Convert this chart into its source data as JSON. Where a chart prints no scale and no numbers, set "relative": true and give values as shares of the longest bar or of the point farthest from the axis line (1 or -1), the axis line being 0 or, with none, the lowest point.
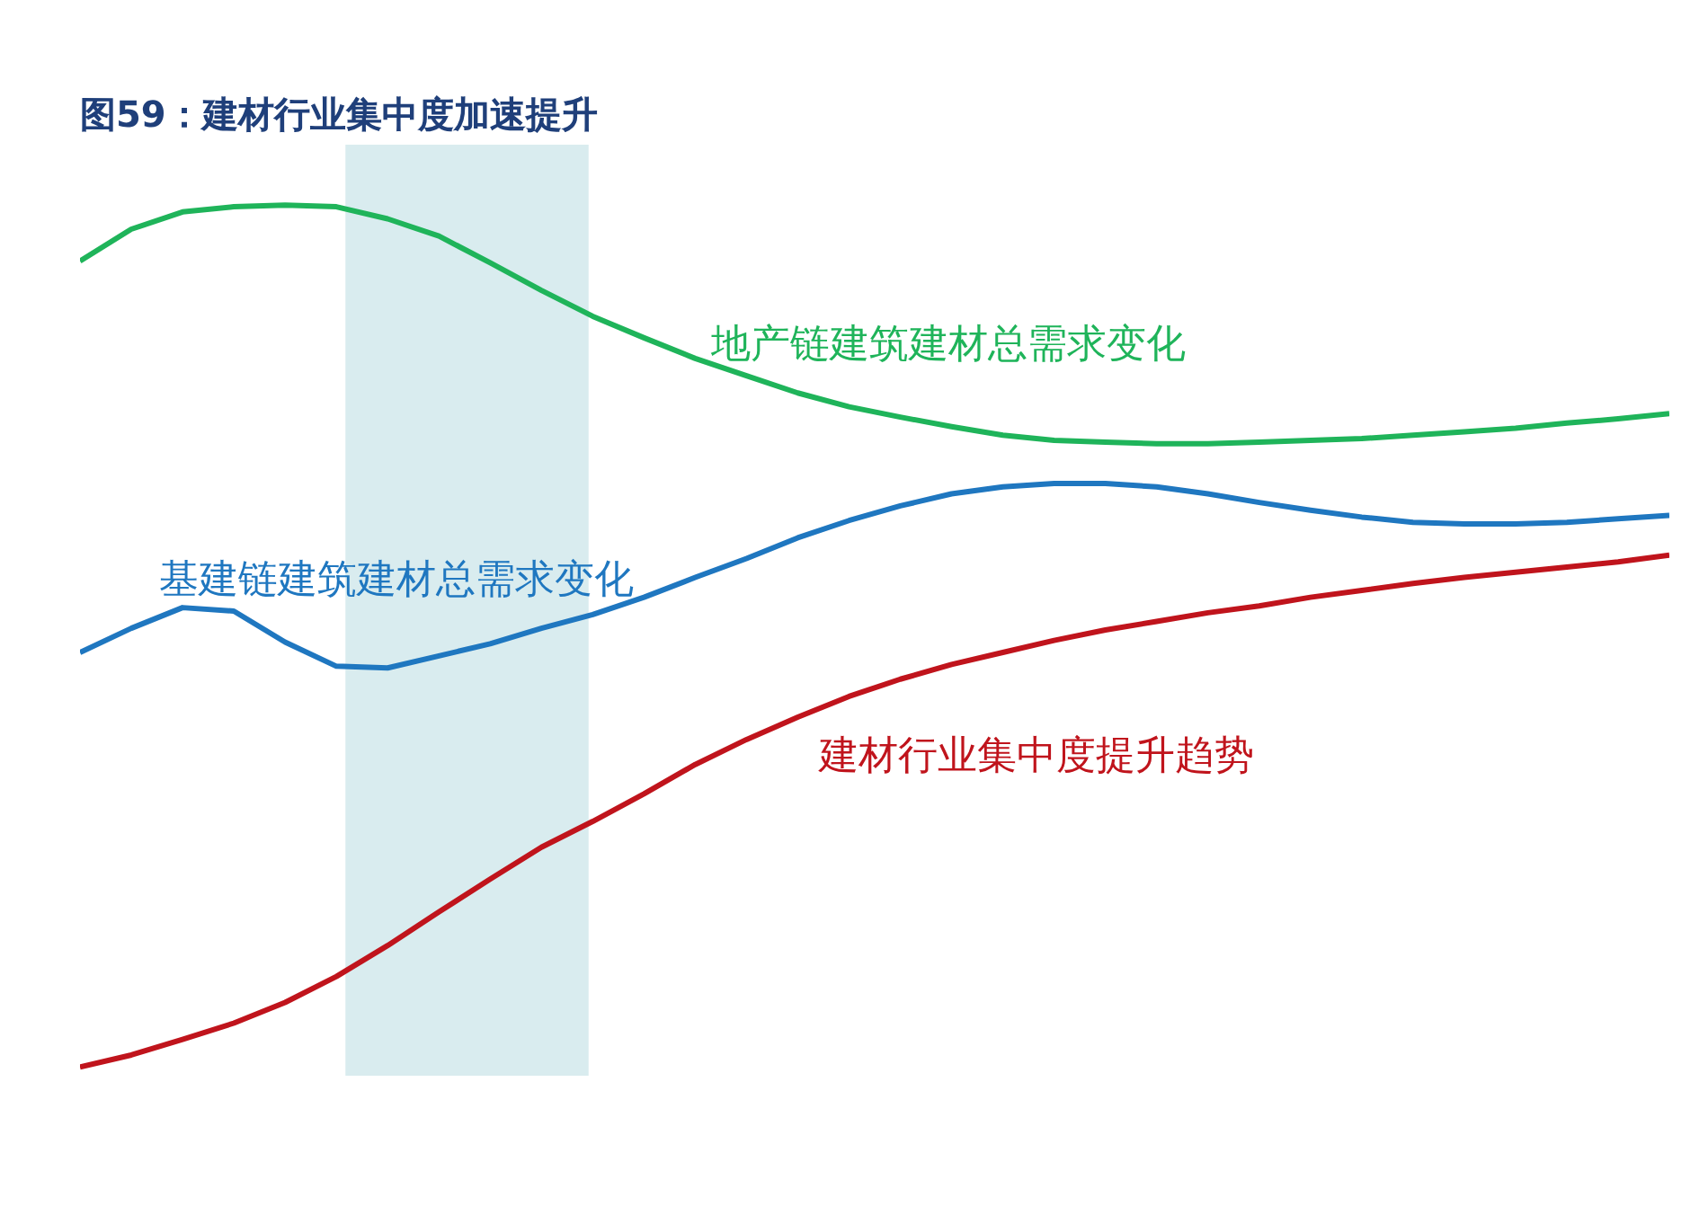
{
  "chart_data": {
    "type": "line",
    "title": "图59：建材行业集中度加速提升",
    "relative": true,
    "categories": [
      null,
      null,
      null,
      null,
      null,
      null,
      null,
      null,
      null,
      null,
      null,
      null,
      null,
      null,
      null,
      null,
      null,
      null,
      null,
      null,
      null,
      null,
      null,
      null,
      null,
      null,
      null,
      null,
      null,
      null,
      null,
      null
    ],
    "series": [
      {
        "name": "地产链建筑建材总需求变化",
        "color": "#1fb45a",
        "values": [
          0.935,
          0.972,
          0.992,
          0.998,
          1,
          0.998,
          0.984,
          0.964,
          0.933,
          0.901,
          0.871,
          0.846,
          0.822,
          0.802,
          0.782,
          0.766,
          0.754,
          0.743,
          0.733,
          0.727,
          0.725,
          0.723,
          0.723,
          0.725,
          0.727,
          0.729,
          0.733,
          0.737,
          0.741,
          0.747,
          0.752,
          0.758
        ]
      },
      {
        "name": "基建链建筑建材总需求变化",
        "color": "#1f77c0",
        "values": [
          0.481,
          0.509,
          0.533,
          0.529,
          0.493,
          0.465,
          0.463,
          0.477,
          0.491,
          0.509,
          0.525,
          0.545,
          0.568,
          0.59,
          0.614,
          0.634,
          0.651,
          0.665,
          0.673,
          0.677,
          0.677,
          0.673,
          0.665,
          0.655,
          0.646,
          0.638,
          0.632,
          0.63,
          0.63,
          0.632,
          0.636,
          0.64
        ]
      },
      {
        "name": "建材行业集中度提升趋势",
        "color": "#c0141c",
        "values": [
          0,
          0.014,
          0.032,
          0.051,
          0.075,
          0.105,
          0.141,
          0.18,
          0.218,
          0.255,
          0.285,
          0.317,
          0.351,
          0.38,
          0.406,
          0.43,
          0.45,
          0.467,
          0.481,
          0.495,
          0.507,
          0.517,
          0.527,
          0.535,
          0.545,
          0.553,
          0.561,
          0.568,
          0.574,
          0.58,
          0.586,
          0.594
        ]
      }
    ]
  }
}
